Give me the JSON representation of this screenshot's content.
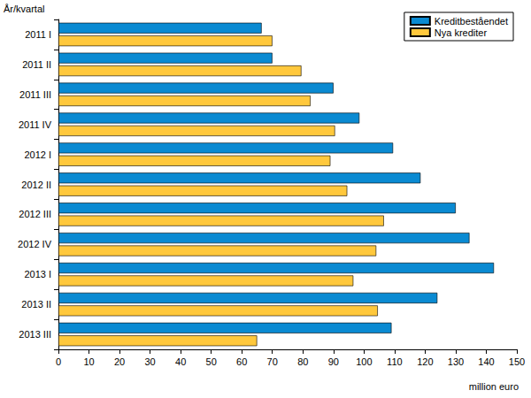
{
  "chart_data": {
    "type": "bar",
    "orientation": "horizontal",
    "x_label": "million euro",
    "y_label": "År/kvartal",
    "categories": [
      "2011 I",
      "2011 II",
      "2011 III",
      "2011 IV",
      "2012 I",
      "2012 II",
      "2012 III",
      "2012 IV",
      "2013 I",
      "2013 II",
      "2013 III"
    ],
    "series": [
      {
        "name": "Kreditbeståendet",
        "color": "#0a8ad2",
        "values": [
          66.5,
          70,
          90,
          98.5,
          109.5,
          118.5,
          130,
          134.5,
          142.5,
          124,
          109
        ]
      },
      {
        "name": "Nya krediter",
        "color": "#ffc83c",
        "values": [
          70,
          79.5,
          82.5,
          90.5,
          89,
          94.5,
          106.5,
          104,
          96.5,
          104.5,
          65
        ]
      }
    ],
    "xlim": [
      0,
      150
    ],
    "xticks": [
      0,
      10,
      20,
      30,
      40,
      50,
      60,
      70,
      80,
      90,
      100,
      110,
      120,
      130,
      140,
      150
    ],
    "grid": false,
    "legend": "upper right"
  }
}
